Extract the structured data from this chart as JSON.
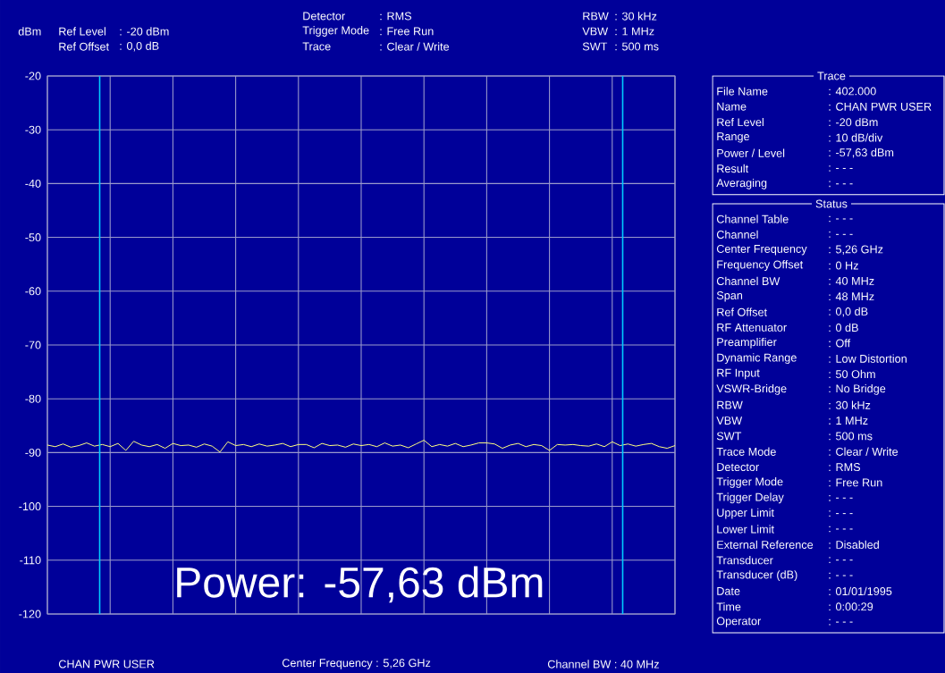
{
  "chart_data": {
    "type": "line",
    "ylabel": "dBm",
    "categories": [
      null,
      null,
      null,
      null,
      null,
      null,
      null,
      null,
      null,
      null,
      null,
      null,
      null,
      null,
      null,
      null,
      null,
      null,
      null,
      null,
      null,
      null,
      null,
      null,
      null,
      null,
      null,
      null,
      null,
      null,
      null,
      null,
      null,
      null,
      null,
      null,
      null,
      null,
      null,
      null,
      null,
      null,
      null,
      null,
      null,
      null,
      null,
      null,
      null,
      null,
      null,
      null,
      null,
      null,
      null,
      null,
      null,
      null,
      null,
      null,
      null,
      null,
      null,
      null,
      null,
      null,
      null,
      null,
      null,
      null,
      null,
      null,
      null,
      null,
      null,
      null,
      null,
      null,
      null,
      null,
      null
    ],
    "series": [
      {
        "color": "#ffff80",
        "values": [
          -88.6,
          -88.9,
          -88.4,
          -89.0,
          -88.7,
          -88.2,
          -88.8,
          -88.5,
          -88.9,
          -88.3,
          -89.6,
          -87.9,
          -88.6,
          -88.9,
          -88.5,
          -89.2,
          -88.3,
          -88.7,
          -88.6,
          -89.0,
          -88.4,
          -88.8,
          -89.9,
          -88.0,
          -88.7,
          -88.5,
          -88.9,
          -88.4,
          -88.8,
          -88.6,
          -88.3,
          -88.9,
          -88.5,
          -88.5,
          -89.1,
          -88.3,
          -88.7,
          -88.6,
          -89.0,
          -88.4,
          -88.7,
          -88.5,
          -88.9,
          -88.2,
          -88.8,
          -88.6,
          -89.1,
          -88.4,
          -87.7,
          -88.9,
          -88.5,
          -88.8,
          -88.3,
          -88.9,
          -88.6,
          -88.2,
          -88.2,
          -88.4,
          -89.2,
          -88.6,
          -88.3,
          -88.9,
          -88.5,
          -88.7,
          -89.6,
          -88.5,
          -88.6,
          -88.5,
          -88.7,
          -88.8,
          -88.4,
          -88.9,
          -88.0,
          -88.7,
          -88.4,
          -88.8,
          -88.5,
          -88.3,
          -88.9,
          -89.2,
          -88.7
        ]
      }
    ],
    "ylim": [
      -120,
      -20
    ],
    "yticks": [
      {
        "value": -120,
        "label": "-120"
      },
      {
        "value": -110,
        "label": "-110"
      },
      {
        "value": -100,
        "label": "-100"
      },
      {
        "value": -90,
        "label": "-90"
      },
      {
        "value": -80,
        "label": "-80"
      },
      {
        "value": -70,
        "label": "-70"
      },
      {
        "value": -60,
        "label": "-60"
      },
      {
        "value": -50,
        "label": "-50"
      },
      {
        "value": -40,
        "label": "-40"
      },
      {
        "value": -30,
        "label": "-30"
      },
      {
        "value": -20,
        "label": "-20"
      }
    ],
    "tick_labels": "y",
    "grid": true,
    "annotations": [
      "Ref Level",
      ": -20   dBm",
      "Ref Offset",
      ":   0,0 dB",
      "Detector",
      ": RMS",
      "Trigger Mode",
      ": Free Run",
      "Trace",
      ": Clear / Write",
      "RBW",
      ":   30 kHz",
      "VBW",
      ":     1 MHz",
      "SWT",
      ": 500 ms",
      "Trace",
      "File Name",
      ": 402.000",
      "Name",
      ": CHAN PWR USER",
      "Ref Level",
      ":  -20   dBm",
      "Range",
      ": 10 dB/div",
      "Power / Level",
      ":  -57,63 dBm",
      "Result",
      ": - - -",
      "Averaging",
      ": - - -",
      "Status",
      "Channel Table",
      ": - - -",
      "Channel",
      ": - - -",
      "Center Frequency",
      ":   5,26 GHz",
      "Frequency Offset",
      ":   0   Hz",
      "Channel BW",
      ":  40   MHz",
      "Span",
      ":  48   MHz",
      "Ref Offset",
      ":   0,0  dB",
      "RF Attenuator",
      ":   0   dB",
      "Preamplifier",
      ": Off",
      "Dynamic Range",
      ": Low Distortion",
      "RF Input",
      ":  50   Ohm",
      "VSWR-Bridge",
      ": No Bridge",
      "RBW",
      ":  30   kHz",
      "VBW",
      ":   1   MHz",
      "SWT",
      ": 500   ms",
      "Trace Mode",
      ": Clear / Write",
      "Detector",
      ": RMS",
      "Trigger Mode",
      ": Free Run",
      "Trigger Delay",
      ": - - -",
      "Upper Limit",
      ": - - -",
      "Lower Limit",
      ": - - -",
      "External Reference",
      ": Disabled",
      "Transducer",
      ": - - -",
      "Transducer (dB)",
      ": - - -",
      "Date",
      ": 01/01/1995",
      "Time",
      ": 0:00:29",
      "Operator",
      ": - - -",
      "Power: -57,63 dBm",
      "CHAN PWR USER",
      "Center Frequency : 5,26 GHz",
      "Channel BW : 40 MHz"
    ]
  }
}
